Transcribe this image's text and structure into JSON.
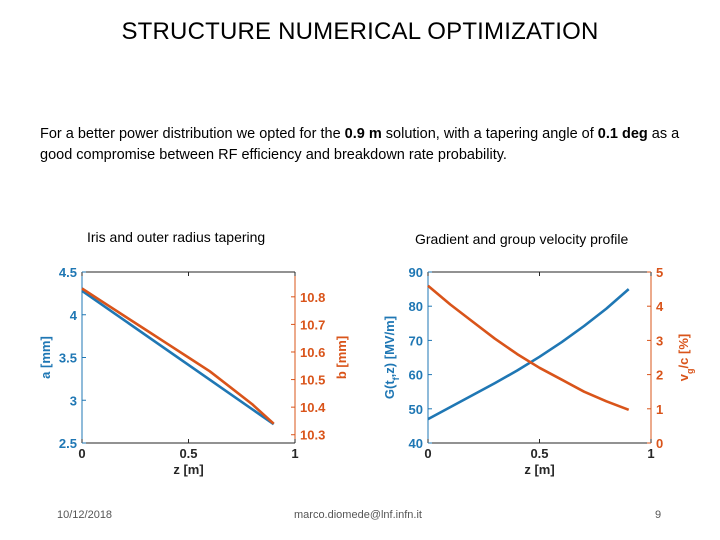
{
  "slide": {
    "title": "STRUCTURE NUMERICAL OPTIMIZATION",
    "intro": {
      "p1": "For a better power distribution we opted for the ",
      "b1": "0.9 m",
      "p2": " solution, with a tapering angle of ",
      "b2": "0.1 deg",
      "p3": " as a good compromise between RF efficiency and breakdown rate probability."
    },
    "footer": {
      "date": "10/12/2018",
      "email": "marco.diomede@lnf.infn.it",
      "page": "9"
    }
  },
  "colors": {
    "blue": "#1f77b4",
    "orange": "#d9541a"
  },
  "chart_data": [
    {
      "type": "line",
      "title": "Iris and outer radius tapering",
      "xlabel": "z [m]",
      "xlim": [
        0,
        1
      ],
      "xticks": [
        0,
        0.5,
        1
      ],
      "xtick_labels": [
        "0",
        "0.5",
        "1"
      ],
      "ylabel_left": "a [mm]",
      "ylim_left": [
        2.5,
        4.5
      ],
      "yticks_left": [
        2.5,
        3,
        3.5,
        4,
        4.5
      ],
      "ytick_labels_left": [
        "2.5",
        "3",
        "3.5",
        "4",
        "4.5"
      ],
      "ylabel_right": "b [mm]",
      "ylim_right": [
        10.27,
        10.89
      ],
      "yticks_right": [
        10.3,
        10.4,
        10.5,
        10.6,
        10.7,
        10.8
      ],
      "ytick_labels_right": [
        "10.3",
        "10.4",
        "10.5",
        "10.6",
        "10.7",
        "10.8"
      ],
      "grid": false,
      "series": [
        {
          "axis": "left",
          "color": "#1f77b4",
          "x": [
            0,
            0.9
          ],
          "y": [
            4.28,
            2.72
          ]
        },
        {
          "axis": "right",
          "color": "#d9541a",
          "x": [
            0,
            0.1,
            0.2,
            0.3,
            0.4,
            0.5,
            0.6,
            0.7,
            0.8,
            0.9
          ],
          "y": [
            10.83,
            10.78,
            10.73,
            10.68,
            10.63,
            10.58,
            10.53,
            10.47,
            10.41,
            10.34
          ]
        }
      ]
    },
    {
      "type": "line",
      "title": "Gradient and group velocity profile",
      "xlabel": "z [m]",
      "xlim": [
        0,
        1
      ],
      "xticks": [
        0,
        0.5,
        1
      ],
      "xtick_labels": [
        "0",
        "0.5",
        "1"
      ],
      "ylabel_left_main": "G(t",
      "ylabel_left_sub": "f",
      "ylabel_left_end": ",z) [MV/m]",
      "ylim_left": [
        40,
        90
      ],
      "yticks_left": [
        40,
        50,
        60,
        70,
        80,
        90
      ],
      "ytick_labels_left": [
        "40",
        "50",
        "60",
        "70",
        "80",
        "90"
      ],
      "ylabel_right_main": "v",
      "ylabel_right_sub": "g",
      "ylabel_right_end": "/c [%]",
      "ylim_right": [
        0,
        5
      ],
      "yticks_right": [
        0,
        1,
        2,
        3,
        4,
        5
      ],
      "ytick_labels_right": [
        "0",
        "1",
        "2",
        "3",
        "4",
        "5"
      ],
      "grid": false,
      "series": [
        {
          "axis": "left",
          "color": "#1f77b4",
          "x": [
            0,
            0.1,
            0.2,
            0.3,
            0.4,
            0.5,
            0.6,
            0.7,
            0.8,
            0.9
          ],
          "y": [
            47,
            50.5,
            54,
            57.5,
            61.2,
            65.2,
            69.5,
            74.2,
            79.3,
            85
          ]
        },
        {
          "axis": "right",
          "color": "#d9541a",
          "x": [
            0,
            0.1,
            0.2,
            0.3,
            0.4,
            0.5,
            0.6,
            0.7,
            0.8,
            0.9
          ],
          "y": [
            4.6,
            4.05,
            3.55,
            3.05,
            2.6,
            2.2,
            1.85,
            1.5,
            1.22,
            0.97
          ]
        }
      ]
    }
  ]
}
